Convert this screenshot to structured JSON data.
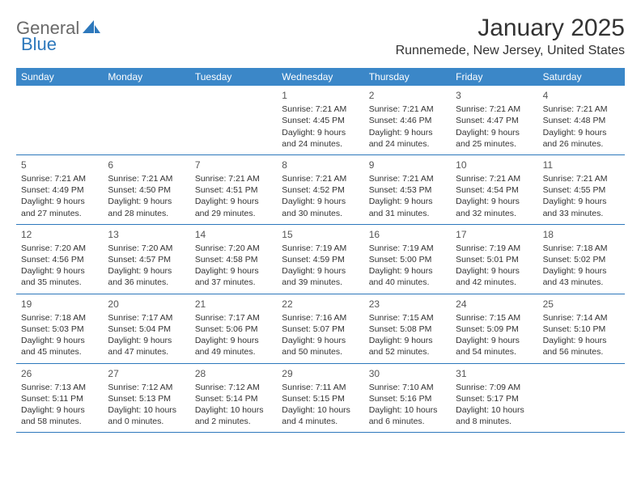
{
  "logo": {
    "text1": "General",
    "text2": "Blue"
  },
  "title": "January 2025",
  "location": "Runnemede, New Jersey, United States",
  "colors": {
    "header_bg": "#3b87c8",
    "header_text": "#ffffff",
    "accent": "#2d78bc",
    "body_text": "#333333",
    "logo_gray": "#6a6a6a"
  },
  "dayNames": [
    "Sunday",
    "Monday",
    "Tuesday",
    "Wednesday",
    "Thursday",
    "Friday",
    "Saturday"
  ],
  "weeks": [
    [
      null,
      null,
      null,
      {
        "n": "1",
        "sr": "7:21 AM",
        "ss": "4:45 PM",
        "d1": "9 hours",
        "d2": "24 minutes."
      },
      {
        "n": "2",
        "sr": "7:21 AM",
        "ss": "4:46 PM",
        "d1": "9 hours",
        "d2": "24 minutes."
      },
      {
        "n": "3",
        "sr": "7:21 AM",
        "ss": "4:47 PM",
        "d1": "9 hours",
        "d2": "25 minutes."
      },
      {
        "n": "4",
        "sr": "7:21 AM",
        "ss": "4:48 PM",
        "d1": "9 hours",
        "d2": "26 minutes."
      }
    ],
    [
      {
        "n": "5",
        "sr": "7:21 AM",
        "ss": "4:49 PM",
        "d1": "9 hours",
        "d2": "27 minutes."
      },
      {
        "n": "6",
        "sr": "7:21 AM",
        "ss": "4:50 PM",
        "d1": "9 hours",
        "d2": "28 minutes."
      },
      {
        "n": "7",
        "sr": "7:21 AM",
        "ss": "4:51 PM",
        "d1": "9 hours",
        "d2": "29 minutes."
      },
      {
        "n": "8",
        "sr": "7:21 AM",
        "ss": "4:52 PM",
        "d1": "9 hours",
        "d2": "30 minutes."
      },
      {
        "n": "9",
        "sr": "7:21 AM",
        "ss": "4:53 PM",
        "d1": "9 hours",
        "d2": "31 minutes."
      },
      {
        "n": "10",
        "sr": "7:21 AM",
        "ss": "4:54 PM",
        "d1": "9 hours",
        "d2": "32 minutes."
      },
      {
        "n": "11",
        "sr": "7:21 AM",
        "ss": "4:55 PM",
        "d1": "9 hours",
        "d2": "33 minutes."
      }
    ],
    [
      {
        "n": "12",
        "sr": "7:20 AM",
        "ss": "4:56 PM",
        "d1": "9 hours",
        "d2": "35 minutes."
      },
      {
        "n": "13",
        "sr": "7:20 AM",
        "ss": "4:57 PM",
        "d1": "9 hours",
        "d2": "36 minutes."
      },
      {
        "n": "14",
        "sr": "7:20 AM",
        "ss": "4:58 PM",
        "d1": "9 hours",
        "d2": "37 minutes."
      },
      {
        "n": "15",
        "sr": "7:19 AM",
        "ss": "4:59 PM",
        "d1": "9 hours",
        "d2": "39 minutes."
      },
      {
        "n": "16",
        "sr": "7:19 AM",
        "ss": "5:00 PM",
        "d1": "9 hours",
        "d2": "40 minutes."
      },
      {
        "n": "17",
        "sr": "7:19 AM",
        "ss": "5:01 PM",
        "d1": "9 hours",
        "d2": "42 minutes."
      },
      {
        "n": "18",
        "sr": "7:18 AM",
        "ss": "5:02 PM",
        "d1": "9 hours",
        "d2": "43 minutes."
      }
    ],
    [
      {
        "n": "19",
        "sr": "7:18 AM",
        "ss": "5:03 PM",
        "d1": "9 hours",
        "d2": "45 minutes."
      },
      {
        "n": "20",
        "sr": "7:17 AM",
        "ss": "5:04 PM",
        "d1": "9 hours",
        "d2": "47 minutes."
      },
      {
        "n": "21",
        "sr": "7:17 AM",
        "ss": "5:06 PM",
        "d1": "9 hours",
        "d2": "49 minutes."
      },
      {
        "n": "22",
        "sr": "7:16 AM",
        "ss": "5:07 PM",
        "d1": "9 hours",
        "d2": "50 minutes."
      },
      {
        "n": "23",
        "sr": "7:15 AM",
        "ss": "5:08 PM",
        "d1": "9 hours",
        "d2": "52 minutes."
      },
      {
        "n": "24",
        "sr": "7:15 AM",
        "ss": "5:09 PM",
        "d1": "9 hours",
        "d2": "54 minutes."
      },
      {
        "n": "25",
        "sr": "7:14 AM",
        "ss": "5:10 PM",
        "d1": "9 hours",
        "d2": "56 minutes."
      }
    ],
    [
      {
        "n": "26",
        "sr": "7:13 AM",
        "ss": "5:11 PM",
        "d1": "9 hours",
        "d2": "58 minutes."
      },
      {
        "n": "27",
        "sr": "7:12 AM",
        "ss": "5:13 PM",
        "d1": "10 hours",
        "d2": "0 minutes."
      },
      {
        "n": "28",
        "sr": "7:12 AM",
        "ss": "5:14 PM",
        "d1": "10 hours",
        "d2": "2 minutes."
      },
      {
        "n": "29",
        "sr": "7:11 AM",
        "ss": "5:15 PM",
        "d1": "10 hours",
        "d2": "4 minutes."
      },
      {
        "n": "30",
        "sr": "7:10 AM",
        "ss": "5:16 PM",
        "d1": "10 hours",
        "d2": "6 minutes."
      },
      {
        "n": "31",
        "sr": "7:09 AM",
        "ss": "5:17 PM",
        "d1": "10 hours",
        "d2": "8 minutes."
      },
      null
    ]
  ],
  "labels": {
    "sunrise": "Sunrise:",
    "sunset": "Sunset:",
    "daylight": "Daylight:",
    "and": "and"
  }
}
